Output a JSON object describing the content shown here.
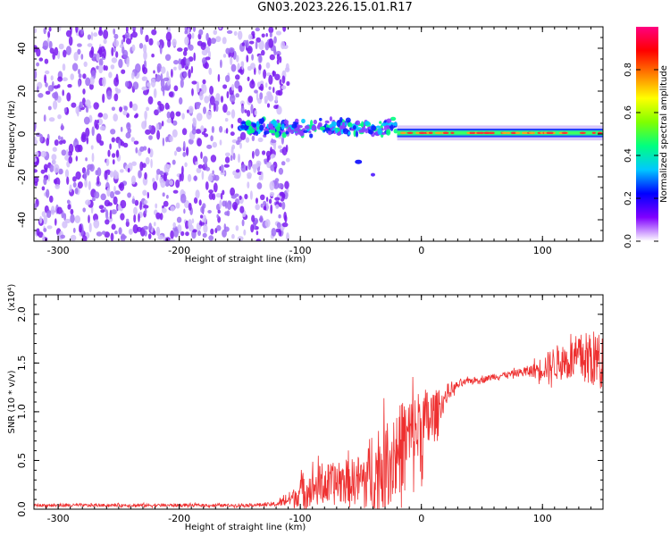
{
  "figure": {
    "title": "GN03.2023.226.15.01.R17"
  },
  "chart_data": [
    {
      "type": "heatmap",
      "id": "spectrogram",
      "xlabel": "Height of straight line (km)",
      "ylabel": "Frequency (Hz)",
      "xlim": [
        -320,
        150
      ],
      "ylim": [
        -50,
        50
      ],
      "xticks": [
        -300,
        -200,
        -100,
        0,
        100
      ],
      "yticks": [
        -40,
        -20,
        0,
        20,
        40
      ],
      "colorbar": {
        "label": "Normalized spectral amplitude",
        "range": [
          0,
          1
        ],
        "ticks": [
          "0.0",
          "0.2",
          "0.4",
          "0.6",
          "0.8"
        ],
        "tick_values": [
          0,
          0.2,
          0.4,
          0.6,
          0.8
        ],
        "colormap": [
          "#ffffff",
          "#8000ff",
          "#0000ff",
          "#00c8ff",
          "#00ff80",
          "#80ff00",
          "#ffff00",
          "#ff8000",
          "#ff0000",
          "#ff0080"
        ]
      },
      "regions": [
        {
          "name": "noise",
          "x_range": [
            -320,
            -110
          ],
          "freq_range": [
            -50,
            50
          ],
          "amplitude": 0.15
        },
        {
          "name": "transition",
          "x_range": [
            -150,
            -20
          ],
          "freq_center": 3,
          "freq_width": 10,
          "amplitude": 0.45
        },
        {
          "name": "carrier",
          "x_range": [
            -20,
            150
          ],
          "freq_center": 0.5,
          "freq_width": 4,
          "amplitude": 0.75
        }
      ]
    },
    {
      "type": "line",
      "id": "snr",
      "xlabel": "Height of straight line (km)",
      "ylabel": "SNR (10 * v/v)",
      "yscale_label": "(x10⁴)",
      "xlim": [
        -320,
        150
      ],
      "ylim": [
        0,
        2.2
      ],
      "xticks": [
        -300,
        -200,
        -100,
        0,
        100
      ],
      "yticks": [
        "0.0",
        "0.5",
        "1.0",
        "1.5",
        "2.0"
      ],
      "ytick_values": [
        0,
        0.5,
        1.0,
        1.5,
        2.0
      ],
      "color": "#ee3030",
      "series": [
        {
          "x": [
            -320,
            -300,
            -250,
            -200,
            -150,
            -120,
            -105,
            -100,
            -90,
            -80,
            -70,
            -60,
            -50,
            -40,
            -30,
            -20,
            -10,
            0,
            5,
            10,
            15,
            20,
            25,
            30,
            40,
            50,
            60,
            70,
            80,
            90,
            100,
            110,
            120,
            130,
            140,
            150
          ],
          "y": [
            0.04,
            0.04,
            0.04,
            0.04,
            0.04,
            0.05,
            0.12,
            0.18,
            0.22,
            0.25,
            0.26,
            0.28,
            0.3,
            0.34,
            0.45,
            0.6,
            0.75,
            0.85,
            0.9,
            0.95,
            1.05,
            1.15,
            1.22,
            1.27,
            1.32,
            1.33,
            1.36,
            1.38,
            1.4,
            1.42,
            1.45,
            1.5,
            1.52,
            1.55,
            1.55,
            1.5
          ],
          "noise": [
            0.015,
            0.015,
            0.015,
            0.015,
            0.015,
            0.02,
            0.1,
            0.15,
            0.2,
            0.22,
            0.22,
            0.22,
            0.28,
            0.35,
            0.45,
            0.45,
            0.45,
            0.4,
            0.35,
            0.3,
            0.15,
            0.08,
            0.06,
            0.04,
            0.03,
            0.03,
            0.03,
            0.03,
            0.04,
            0.06,
            0.12,
            0.18,
            0.2,
            0.25,
            0.3,
            0.3
          ]
        }
      ]
    }
  ]
}
